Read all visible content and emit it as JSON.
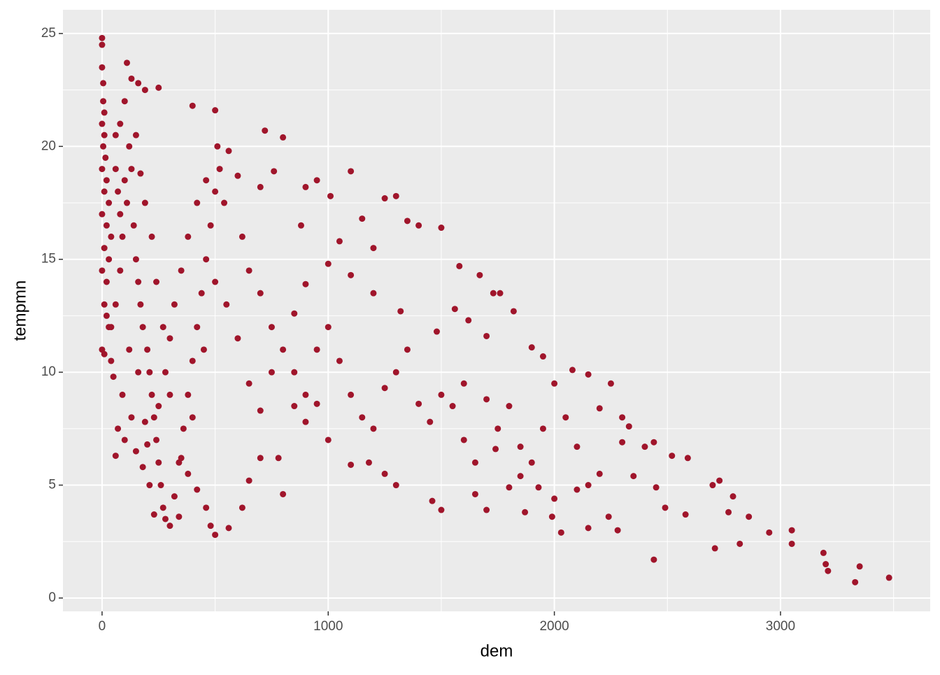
{
  "chart_data": {
    "type": "scatter",
    "x_label": "dem",
    "y_label": "tempmn",
    "color": "#a0152b",
    "xlim": [
      -173,
      3662
    ],
    "ylim": [
      -0.59,
      26.05
    ],
    "xticks": [
      0,
      1000,
      2000,
      3000
    ],
    "yticks": [
      0,
      5,
      10,
      15,
      20,
      25
    ],
    "x_minor_grid": [
      500,
      1500,
      2500,
      3500
    ],
    "y_minor_grid": [
      2.5,
      7.5,
      12.5,
      17.5,
      22.5
    ],
    "grid": true,
    "x": [
      0,
      0,
      0,
      5,
      5,
      10,
      0,
      10,
      5,
      15,
      0,
      20,
      10,
      30,
      0,
      20,
      40,
      10,
      30,
      0,
      20,
      10,
      30,
      0,
      10,
      40,
      50,
      20,
      60,
      70,
      80,
      90,
      100,
      110,
      60,
      80,
      100,
      120,
      130,
      140,
      150,
      160,
      170,
      180,
      200,
      210,
      220,
      230,
      240,
      250,
      260,
      270,
      280,
      300,
      320,
      340,
      360,
      380,
      400,
      420,
      440,
      460,
      480,
      500,
      520,
      540,
      110,
      130,
      160,
      190,
      250,
      400,
      500,
      720,
      800,
      510,
      560,
      700,
      760,
      900,
      950,
      1010,
      1100,
      1250,
      1300,
      1350,
      1400,
      1500,
      880,
      1050,
      1150,
      1200,
      1580,
      1670,
      1730,
      1760,
      1560,
      1620,
      1700,
      1820,
      1900,
      1950,
      2000,
      2080,
      2150,
      2250,
      2300,
      2330,
      2400,
      2440,
      2520,
      2590,
      2450,
      2490,
      2580,
      2700,
      2730,
      2790,
      2770,
      2860,
      2950,
      3050,
      3050,
      2820,
      2710,
      3190,
      3200,
      3210,
      3330,
      3350,
      3480,
      2440,
      2280,
      2240,
      2150,
      2030,
      1990,
      2000,
      1930,
      1870,
      1800,
      1700,
      1650,
      1500,
      1460,
      1300,
      1250,
      1180,
      1100,
      1000,
      950,
      900,
      850,
      800,
      780,
      700,
      650,
      620,
      560,
      500,
      480,
      460,
      420,
      380,
      340,
      230,
      210,
      180,
      150,
      100,
      70,
      60,
      200,
      250,
      280,
      300,
      320,
      350,
      380,
      420,
      460,
      600,
      620,
      650,
      700,
      750,
      800,
      850,
      900,
      950,
      1000,
      1050,
      1100,
      1150,
      1200,
      1250,
      1300,
      1350,
      1400,
      1450,
      1500,
      1550,
      1600,
      1650,
      1700,
      1750,
      1800,
      1850,
      1900,
      1950,
      2050,
      2100,
      2150,
      2200,
      2300,
      2350,
      2200,
      2100,
      1850,
      1740,
      1600,
      1480,
      1320,
      1200,
      1100,
      1000,
      900,
      850,
      750,
      700,
      650,
      600,
      550,
      500,
      450,
      400,
      350,
      300,
      270,
      240,
      220,
      190,
      170,
      150,
      80,
      60,
      40,
      120,
      90,
      130,
      160,
      190
    ],
    "y": [
      24.8,
      24.5,
      23.5,
      22.8,
      22,
      21.5,
      21,
      20.5,
      20,
      19.5,
      19,
      18.5,
      18,
      17.5,
      17,
      16.5,
      16,
      15.5,
      15,
      14.5,
      14,
      13,
      12,
      11,
      10.8,
      10.5,
      9.8,
      12.5,
      19,
      18,
      17,
      16,
      18.5,
      17.5,
      20.5,
      21,
      22,
      20,
      19,
      16.5,
      15,
      14,
      13,
      12,
      11,
      10,
      9,
      8,
      7,
      6,
      5,
      4,
      3.5,
      3.2,
      4.5,
      6,
      7.5,
      9,
      10.5,
      12,
      13.5,
      15,
      16.5,
      18,
      19,
      17.5,
      23.7,
      23,
      22.8,
      22.5,
      22.6,
      21.8,
      21.6,
      20.7,
      20.4,
      20,
      19.8,
      18.2,
      18.9,
      18.2,
      18.5,
      17.8,
      18.9,
      17.7,
      17.8,
      16.7,
      16.5,
      16.4,
      16.5,
      15.8,
      16.8,
      15.5,
      14.7,
      14.3,
      13.5,
      13.5,
      12.8,
      12.3,
      11.6,
      12.7,
      11.1,
      10.7,
      9.5,
      10.1,
      9.9,
      9.5,
      8,
      7.6,
      6.7,
      6.9,
      6.3,
      6.2,
      4.9,
      4,
      3.7,
      5,
      5.2,
      4.5,
      3.8,
      3.6,
      2.9,
      3,
      2.4,
      2.4,
      2.2,
      2,
      1.5,
      1.2,
      0.7,
      1.4,
      0.9,
      1.7,
      3,
      3.6,
      3.1,
      2.9,
      3.6,
      4.4,
      4.9,
      3.8,
      4.9,
      3.9,
      4.6,
      3.9,
      4.3,
      5,
      5.5,
      6,
      5.9,
      7,
      8.6,
      7.8,
      8.5,
      4.6,
      6.2,
      6.2,
      5.2,
      4,
      3.1,
      2.8,
      3.2,
      4,
      4.8,
      5.5,
      3.6,
      3.7,
      5,
      5.8,
      6.5,
      7,
      7.5,
      6.3,
      6.8,
      8.5,
      10,
      11.5,
      13,
      14.5,
      16,
      17.5,
      18.5,
      18.7,
      16,
      14.5,
      13.5,
      12,
      11,
      10,
      9,
      11,
      12,
      10.5,
      9,
      8,
      7.5,
      9.3,
      10,
      11,
      8.6,
      7.8,
      9,
      8.5,
      7,
      6,
      8.8,
      7.5,
      8.5,
      6.7,
      6,
      7.5,
      8,
      6.7,
      5,
      8.4,
      6.9,
      5.4,
      5.5,
      4.8,
      5.4,
      6.6,
      9.5,
      11.8,
      12.7,
      13.5,
      14.3,
      14.8,
      13.9,
      12.6,
      10,
      8.3,
      9.5,
      11.5,
      13,
      14,
      11,
      8,
      6.2,
      9,
      12,
      14,
      16,
      17.5,
      18.8,
      20.5,
      14.5,
      13,
      12,
      11,
      9,
      8,
      10,
      7.8
    ]
  }
}
